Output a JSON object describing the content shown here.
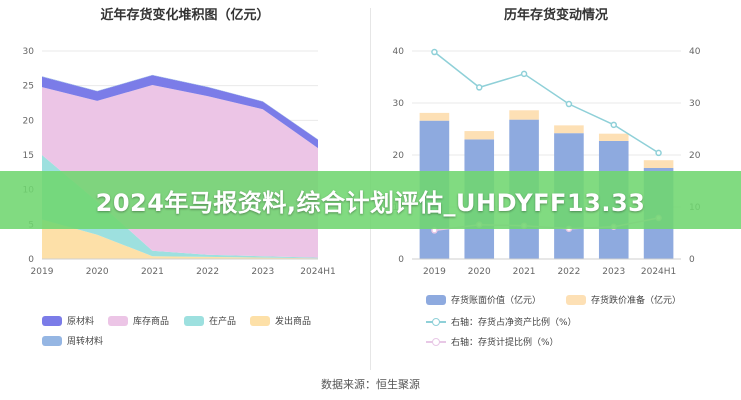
{
  "chart_data": [
    {
      "type": "area",
      "title": "近年存货变化堆积图（亿元）",
      "categories": [
        "2019",
        "2020",
        "2021",
        "2022",
        "2023",
        "2024H1"
      ],
      "ylim": [
        0,
        30
      ],
      "yticks": [
        0,
        5,
        10,
        15,
        20,
        25,
        30
      ],
      "stack_order": [
        "发出商品",
        "在产品",
        "库存商品",
        "原材料",
        "周转材料"
      ],
      "series": [
        {
          "name": "原材料",
          "color": "#7b7ce8",
          "values": [
            1.5,
            1.4,
            1.4,
            1.3,
            1.1,
            1.2
          ]
        },
        {
          "name": "库存商品",
          "color": "#ecc5e6",
          "values": [
            9.8,
            14.5,
            23.9,
            22.9,
            21.2,
            15.8
          ]
        },
        {
          "name": "在产品",
          "color": "#9de0df",
          "values": [
            9.3,
            4.8,
            0.8,
            0.3,
            0.2,
            0.1
          ]
        },
        {
          "name": "发出商品",
          "color": "#fde0a8",
          "values": [
            5.7,
            3.5,
            0.4,
            0.3,
            0.2,
            0.1
          ]
        },
        {
          "name": "周转材料",
          "color": "#95b6e3",
          "values": [
            0.05,
            0.05,
            0.05,
            0.05,
            0.05,
            0.05
          ]
        }
      ],
      "grid": true
    },
    {
      "type": "bar",
      "title": "历年存货变动情况",
      "categories": [
        "2019",
        "2020",
        "2021",
        "2022",
        "2023",
        "2024H1"
      ],
      "ylim": [
        0,
        40
      ],
      "yticks": [
        0,
        10,
        20,
        30,
        40
      ],
      "y2lim": [
        0,
        40
      ],
      "y2ticks": [
        0,
        10,
        20,
        30,
        40
      ],
      "stacked": true,
      "series": [
        {
          "name": "存货账面价值（亿元）",
          "kind": "bar",
          "color": "#8eaadf",
          "values": [
            26.6,
            23.0,
            26.8,
            24.2,
            22.7,
            17.5
          ]
        },
        {
          "name": "存货跌价准备（亿元）",
          "kind": "bar",
          "color": "#fde0b5",
          "values": [
            1.5,
            1.6,
            1.8,
            1.5,
            1.4,
            1.5
          ]
        },
        {
          "name": "右轴：存货占净资产比例（%）",
          "kind": "line",
          "axis": "right",
          "color": "#8fd0d8",
          "values": [
            39.8,
            33.0,
            35.6,
            29.8,
            25.8,
            20.4
          ]
        },
        {
          "name": "右轴：存货计提比例（%）",
          "kind": "line",
          "axis": "right",
          "color": "#e8c8e6",
          "values": [
            5.5,
            6.6,
            6.4,
            5.8,
            6.2,
            7.9
          ]
        }
      ],
      "grid": true
    }
  ],
  "source_note": "数据来源：恒生聚源",
  "overlay_banner": "2024年马报资料,综合计划评估_UHDYFF13.33"
}
